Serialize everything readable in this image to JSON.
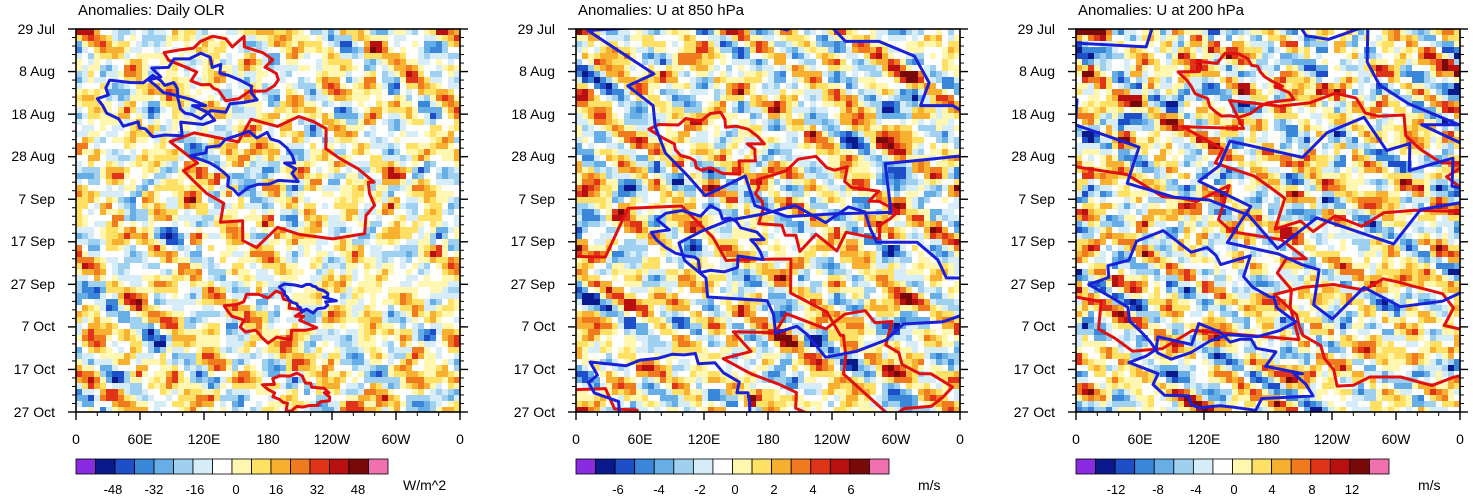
{
  "chart_data": [
    {
      "type": "heatmap",
      "title": "Anomalies: Daily OLR",
      "units": "W/m^2",
      "y_ticks": [
        "29 Jul",
        "8 Aug",
        "18 Aug",
        "28 Aug",
        "7 Sep",
        "17 Sep",
        "27 Sep",
        "7 Oct",
        "17 Oct",
        "27 Oct"
      ],
      "x_ticks": [
        "0",
        "60E",
        "120E",
        "180",
        "120W",
        "60W",
        "0"
      ],
      "colorbar_labels": [
        "-48",
        "-32",
        "-16",
        "0",
        "16",
        "32",
        "48"
      ],
      "palette": [
        "#8a2be2",
        "#0a1a8c",
        "#1f4fc8",
        "#3a86d8",
        "#67aee6",
        "#9fd0f0",
        "#d6ecf8",
        "#fefefe",
        "#fff6b0",
        "#fde064",
        "#f8b030",
        "#f07a1e",
        "#e03418",
        "#b81010",
        "#7a0a0a",
        "#f070b0"
      ],
      "contours": {
        "red": [
          [
            0.78,
            0.1,
            0.1
          ],
          [
            1.05,
            0.4,
            0.2
          ],
          [
            1.0,
            0.75,
            0.08
          ],
          [
            1.15,
            0.95,
            0.06
          ]
        ],
        "blue": [
          [
            0.4,
            0.2,
            0.1
          ],
          [
            0.65,
            0.15,
            0.1
          ],
          [
            0.9,
            0.35,
            0.1
          ],
          [
            1.2,
            0.7,
            0.05
          ]
        ]
      },
      "seed": 11
    },
    {
      "type": "heatmap",
      "title": "Anomalies: U at 850 hPa",
      "units": "m/s",
      "y_ticks": [
        "29 Jul",
        "8 Aug",
        "18 Aug",
        "28 Aug",
        "7 Sep",
        "17 Sep",
        "27 Sep",
        "7 Oct",
        "17 Oct",
        "27 Oct"
      ],
      "x_ticks": [
        "0",
        "60E",
        "120E",
        "180",
        "120W",
        "60W",
        "0"
      ],
      "colorbar_labels": [
        "-6",
        "-4",
        "-2",
        "0",
        "2",
        "4",
        "6"
      ],
      "palette": [
        "#8a2be2",
        "#0a1a8c",
        "#1f4fc8",
        "#3a86d8",
        "#67aee6",
        "#9fd0f0",
        "#d6ecf8",
        "#fefefe",
        "#fff6b0",
        "#fde064",
        "#f8b030",
        "#f07a1e",
        "#e03418",
        "#b81010",
        "#7a0a0a",
        "#f070b0"
      ],
      "contours": {
        "red": [
          [
            0.55,
            0.8,
            0.4
          ],
          [
            1.25,
            0.45,
            0.15
          ],
          [
            0.7,
            0.3,
            0.1
          ],
          [
            1.4,
            0.9,
            0.2
          ]
        ],
        "blue": [
          [
            0.7,
            0.55,
            0.1
          ],
          [
            1.1,
            0.2,
            0.35
          ],
          [
            0.5,
            0.95,
            0.15
          ],
          [
            1.3,
            0.65,
            0.25
          ]
        ]
      },
      "seed": 23
    },
    {
      "type": "heatmap",
      "title": "Anomalies: U at 200 hPa",
      "units": "m/s",
      "y_ticks": [
        "29 Jul",
        "8 Aug",
        "18 Aug",
        "28 Aug",
        "7 Sep",
        "17 Sep",
        "27 Sep",
        "7 Oct",
        "17 Oct",
        "27 Oct"
      ],
      "x_ticks": [
        "0",
        "60E",
        "120E",
        "180",
        "120W",
        "60W",
        "0"
      ],
      "colorbar_labels": [
        "-12",
        "-8",
        "-4",
        "0",
        "4",
        "8",
        "12"
      ],
      "palette": [
        "#8a2be2",
        "#0a1a8c",
        "#1f4fc8",
        "#3a86d8",
        "#67aee6",
        "#9fd0f0",
        "#d6ecf8",
        "#fefefe",
        "#fff6b0",
        "#fde064",
        "#f8b030",
        "#f07a1e",
        "#e03418",
        "#b81010",
        "#7a0a0a",
        "#f070b0"
      ],
      "contours": {
        "red": [
          [
            0.45,
            0.6,
            0.3
          ],
          [
            1.35,
            0.35,
            0.25
          ],
          [
            0.85,
            0.15,
            0.1
          ],
          [
            1.6,
            0.8,
            0.2
          ]
        ],
        "blue": [
          [
            0.6,
            0.7,
            0.2
          ],
          [
            1.05,
            0.25,
            0.4
          ],
          [
            0.75,
            0.9,
            0.15
          ],
          [
            1.5,
            0.5,
            0.3
          ]
        ]
      },
      "seed": 37
    }
  ]
}
